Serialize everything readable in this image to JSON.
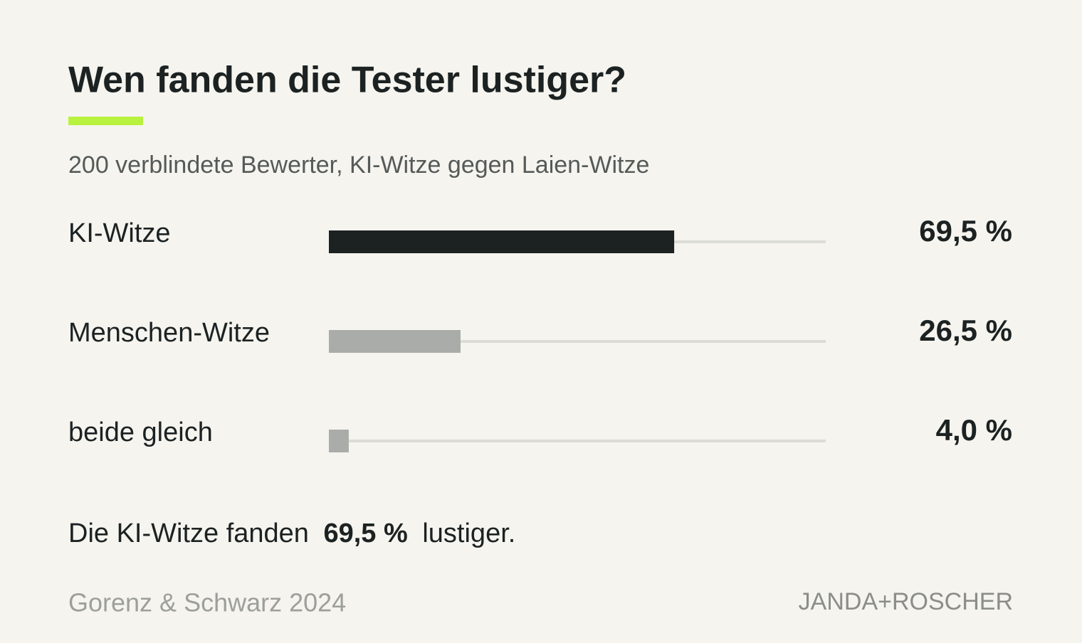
{
  "chart_data": {
    "type": "bar",
    "orientation": "horizontal",
    "title": "Wen fanden die Tester lustiger?",
    "subtitle": "200 verblindete Bewerter, KI-Witze gegen Laien-Witze",
    "categories": [
      "KI-Witze",
      "Menschen-Witze",
      "beide gleich"
    ],
    "values": [
      69.5,
      26.5,
      4.0
    ],
    "value_labels": [
      "69,5 %",
      "26,5 %",
      "4,0 %"
    ],
    "colors": [
      "#1c2222",
      "#a9aca8",
      "#a9aca8"
    ],
    "track_color": "#dcdcd7",
    "accent_color": "#b9f23e",
    "xlim": [
      0,
      100
    ],
    "annotation": {
      "prefix": "Die KI-Witze fanden",
      "highlight": "69,5 %",
      "suffix": "lustiger."
    },
    "source": "Gorenz & Schwarz 2024",
    "brand": "JANDA+ROSCHER"
  }
}
